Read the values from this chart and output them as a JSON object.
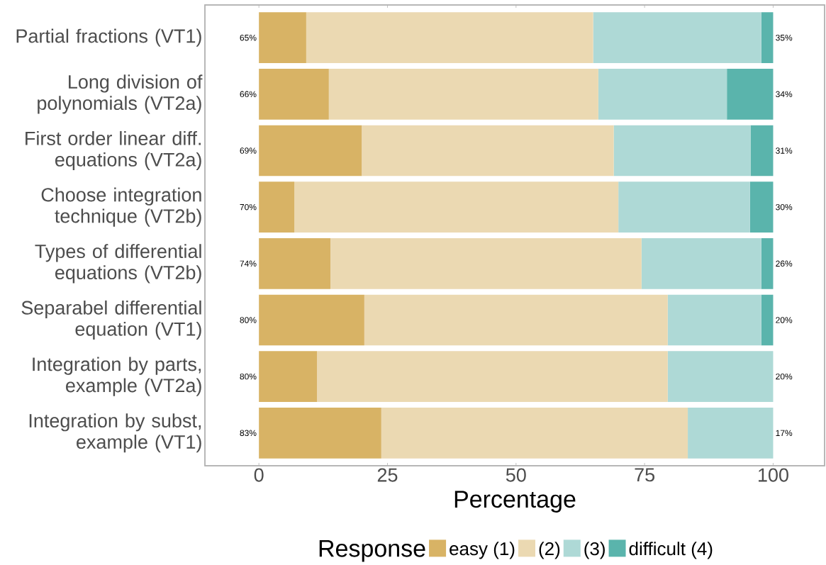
{
  "chart_data": {
    "type": "bar",
    "orientation": "horizontal",
    "stacked": true,
    "categories": [
      "Partial fractions (VT1)",
      "Long division of polynomials (VT2a)",
      "First order linear diff. equations (VT2a)",
      "Choose integration technique (VT2b)",
      "Types of differential equations (VT2b)",
      "Separabel differential equation (VT1)",
      "Integration by parts, example (VT2a)",
      "Integration by subst, example (VT1)"
    ],
    "series": [
      {
        "name": "easy (1)",
        "color": "#d8b365",
        "values": [
          9.2,
          13.6,
          20.0,
          6.9,
          13.9,
          20.5,
          11.3,
          23.8
        ]
      },
      {
        "name": "(2)",
        "color": "#ebd9b2",
        "values": [
          55.8,
          52.4,
          49.0,
          63.0,
          60.5,
          59.0,
          68.2,
          59.6
        ]
      },
      {
        "name": "(3)",
        "color": "#aed9d6",
        "values": [
          32.7,
          25.0,
          26.6,
          25.6,
          23.3,
          18.2,
          20.5,
          16.6
        ]
      },
      {
        "name": "difficult (4)",
        "color": "#5ab4ac",
        "values": [
          2.3,
          9.0,
          4.4,
          4.5,
          2.3,
          2.3,
          0,
          0
        ]
      }
    ],
    "annotations": [
      "65%",
      "66%",
      "69%",
      "70%",
      "74%",
      "80%",
      "80%",
      "83%",
      "35%",
      "34%",
      "31%",
      "30%",
      "26%",
      "20%",
      "20%",
      "17%"
    ],
    "xlabel": "Percentage",
    "legend_title": "Response",
    "legend": "bottom",
    "xlim": [
      -10.5,
      110
    ],
    "xticks": [
      0,
      25,
      50,
      75,
      100
    ],
    "grid": false
  }
}
